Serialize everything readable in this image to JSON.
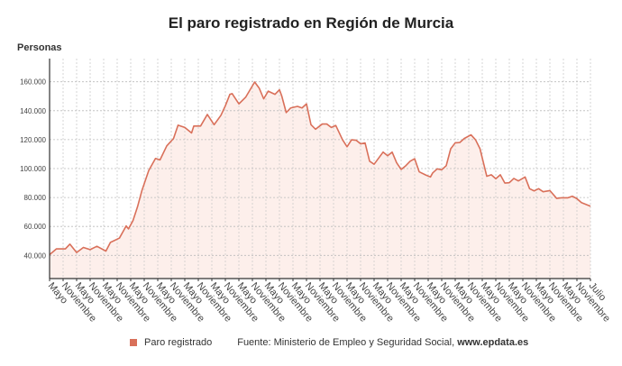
{
  "colors": {
    "line": "#d9705a",
    "fill": "#fdefeb"
  },
  "chart_data": {
    "type": "area",
    "title": "El paro registrado en Región de Murcia",
    "ylabel": "Personas",
    "xlabel": "",
    "ylim": [
      24000,
      176000
    ],
    "yticks": [
      40000,
      60000,
      80000,
      100000,
      120000,
      140000,
      160000
    ],
    "ytick_labels": [
      "40.000",
      "60.000",
      "80.000",
      "100.000",
      "120.000",
      "140.000",
      "160.000"
    ],
    "xlim": [
      0,
      240
    ],
    "xticks": [
      {
        "t": 0,
        "label": "Mayo"
      },
      {
        "t": 6,
        "label": "Noviembre"
      },
      {
        "t": 12,
        "label": "Mayo"
      },
      {
        "t": 18,
        "label": "Noviembre"
      },
      {
        "t": 24,
        "label": "Mayo"
      },
      {
        "t": 30,
        "label": "Noviembre"
      },
      {
        "t": 36,
        "label": "Mayo"
      },
      {
        "t": 42,
        "label": "Noviembre"
      },
      {
        "t": 48,
        "label": "Mayo"
      },
      {
        "t": 54,
        "label": "Noviembre"
      },
      {
        "t": 60,
        "label": "Mayo"
      },
      {
        "t": 66,
        "label": "Noviembre"
      },
      {
        "t": 72,
        "label": "Mayo"
      },
      {
        "t": 78,
        "label": "Noviembre"
      },
      {
        "t": 84,
        "label": "Mayo"
      },
      {
        "t": 90,
        "label": "Noviembre"
      },
      {
        "t": 96,
        "label": "Mayo"
      },
      {
        "t": 102,
        "label": "Noviembre"
      },
      {
        "t": 108,
        "label": "Mayo"
      },
      {
        "t": 114,
        "label": "Noviembre"
      },
      {
        "t": 120,
        "label": "Mayo"
      },
      {
        "t": 126,
        "label": "Noviembre"
      },
      {
        "t": 132,
        "label": "Mayo"
      },
      {
        "t": 138,
        "label": "Noviembre"
      },
      {
        "t": 144,
        "label": "Mayo"
      },
      {
        "t": 150,
        "label": "Noviembre"
      },
      {
        "t": 156,
        "label": "Mayo"
      },
      {
        "t": 162,
        "label": "Noviembre"
      },
      {
        "t": 168,
        "label": "Mayo"
      },
      {
        "t": 174,
        "label": "Noviembre"
      },
      {
        "t": 180,
        "label": "Mayo"
      },
      {
        "t": 186,
        "label": "Noviembre"
      },
      {
        "t": 192,
        "label": "Mayo"
      },
      {
        "t": 198,
        "label": "Noviembre"
      },
      {
        "t": 204,
        "label": "Mayo"
      },
      {
        "t": 210,
        "label": "Noviembre"
      },
      {
        "t": 216,
        "label": "Mayo"
      },
      {
        "t": 222,
        "label": "Noviembre"
      },
      {
        "t": 228,
        "label": "Mayo"
      },
      {
        "t": 234,
        "label": "Noviembre"
      },
      {
        "t": 240,
        "label": "Julio"
      }
    ],
    "series": [
      {
        "name": "Paro registrado",
        "t": [
          0,
          3,
          7,
          9,
          12,
          15,
          18,
          21,
          25,
          27,
          31,
          34,
          35,
          37,
          39,
          41,
          44,
          47,
          49,
          52,
          55,
          57,
          60,
          63,
          64,
          67,
          70,
          73,
          76,
          78,
          80,
          81,
          84,
          87,
          91,
          93,
          95,
          97,
          100,
          102,
          103,
          105,
          107,
          110,
          112,
          114,
          116,
          118,
          121,
          123,
          125,
          127,
          130,
          132,
          134,
          136,
          138,
          140,
          142,
          144,
          146,
          148,
          150,
          152,
          154,
          156,
          158,
          160,
          162,
          164,
          167,
          169,
          170,
          172,
          174,
          176,
          178,
          180,
          182,
          184,
          187,
          189,
          191,
          194,
          196,
          198,
          200,
          202,
          204,
          206,
          208,
          211,
          213,
          215,
          217,
          219,
          222,
          225,
          227,
          230,
          232,
          234,
          236,
          240
        ],
        "values": [
          40500,
          44500,
          44500,
          47800,
          42000,
          45500,
          44000,
          46300,
          43000,
          49000,
          52000,
          60400,
          58300,
          64000,
          73500,
          85000,
          98700,
          107000,
          106000,
          115700,
          120800,
          130000,
          128400,
          124600,
          129400,
          129400,
          137400,
          130300,
          136700,
          143400,
          151300,
          151800,
          144700,
          149300,
          159800,
          155600,
          148200,
          153500,
          151300,
          154500,
          150300,
          138700,
          141900,
          143000,
          141900,
          144700,
          130300,
          127200,
          130800,
          130800,
          128400,
          129800,
          119900,
          115100,
          119900,
          119600,
          117100,
          117700,
          105100,
          103000,
          107200,
          111400,
          108900,
          111400,
          104000,
          99400,
          101900,
          105100,
          106800,
          97800,
          95500,
          94200,
          97000,
          99800,
          99200,
          102000,
          113700,
          117800,
          118000,
          120800,
          123300,
          119900,
          113700,
          94700,
          95700,
          93000,
          95700,
          90000,
          90200,
          93200,
          91500,
          94200,
          86100,
          84600,
          86100,
          84000,
          84800,
          79400,
          79800,
          79800,
          80900,
          79200,
          76500,
          74000
        ]
      }
    ],
    "legend": {
      "position": "bottom",
      "entries": [
        "Paro registrado"
      ]
    },
    "grid": true
  },
  "footer": {
    "source_prefix": "Fuente: Ministerio de Empleo y Seguridad Social, ",
    "source_site": "www.epdata.es"
  }
}
